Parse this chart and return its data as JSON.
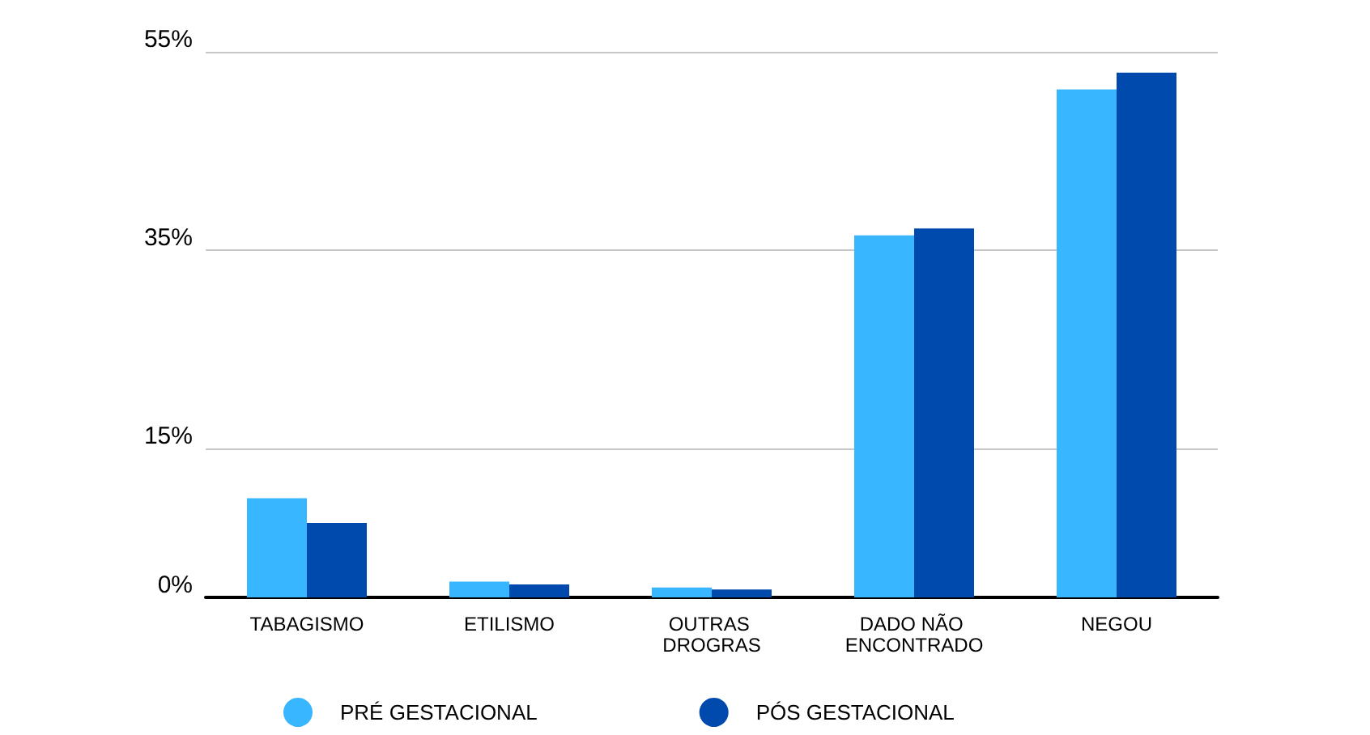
{
  "chart_data": {
    "type": "bar",
    "categories": [
      "TABAGISMO",
      "ETILISMO",
      "OUTRAS DROGRAS",
      "DADO NÃO ENCONTRADO",
      "NEGOU"
    ],
    "series": [
      {
        "name": "PRÉ GESTACIONAL",
        "color": "#38b6ff",
        "values": [
          10.0,
          1.6,
          1.0,
          36.5,
          51.2
        ]
      },
      {
        "name": "PÓS GESTACIONAL",
        "color": "#004aad",
        "values": [
          7.5,
          1.3,
          0.8,
          37.2,
          52.9
        ]
      }
    ],
    "ylim": [
      0,
      55
    ],
    "yticks": [
      {
        "value": 0,
        "label": "0%"
      },
      {
        "value": 15,
        "label": "15%"
      },
      {
        "value": 35,
        "label": "35%"
      },
      {
        "value": 55,
        "label": "55%"
      }
    ],
    "grid": "y",
    "legend": "bottom"
  }
}
